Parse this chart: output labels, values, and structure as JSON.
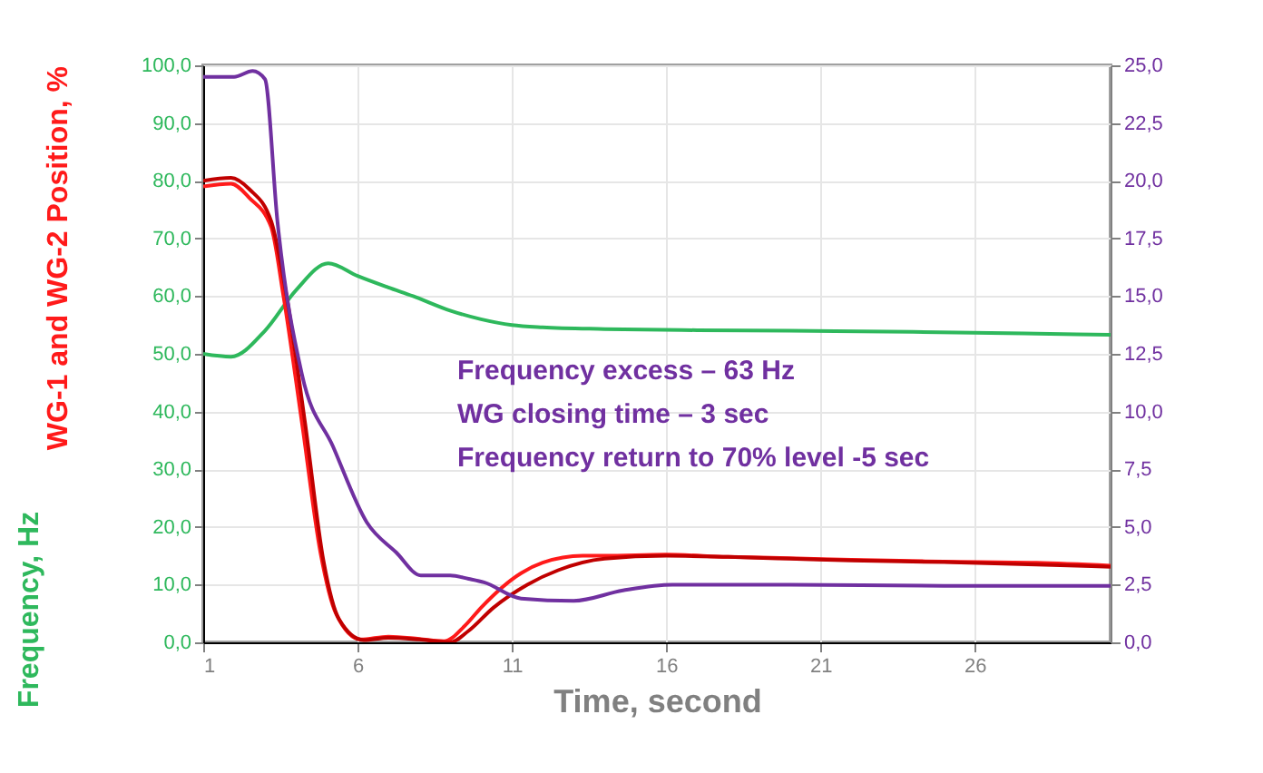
{
  "chart_data": {
    "type": "line",
    "xlabel": "Time, second",
    "ylabel": "WG-1 and WG-2 Position, %",
    "annotations": [
      "Frequency excess – 63 Hz",
      "WG closing time – 3 sec",
      "Frequency return to 70% level -5 sec",
      "Frequency, Hz"
    ],
    "series": [
      {
        "color": "#2eb85c",
        "x": [
          1,
          1.9,
          3,
          4,
          5.05,
          6,
          7,
          7.8,
          9,
          10,
          11,
          12,
          14,
          17,
          20,
          24,
          28,
          30.4
        ],
        "values": [
          50,
          49.5,
          54,
          61,
          65.7,
          63.5,
          61.5,
          60,
          57.5,
          56,
          55,
          54.6,
          54.3,
          54.1,
          54,
          53.8,
          53.5,
          53.3
        ]
      },
      {
        "color": "#ff1a1a",
        "x": [
          1,
          1.9,
          2.5,
          3.2,
          3.6,
          4.2,
          4.8,
          5.3,
          6.1,
          7,
          8,
          8.8,
          9.5,
          10,
          11.3,
          12,
          13.3,
          14,
          16,
          18,
          20,
          22,
          25,
          28,
          30.4
        ],
        "values": [
          79,
          79.5,
          77,
          72,
          60,
          38,
          15.5,
          5,
          0.5,
          1,
          0.6,
          0.2,
          3,
          6,
          12,
          13.8,
          15,
          15,
          15.2,
          14.8,
          14.6,
          14.3,
          14,
          13.8,
          13.3
        ]
      },
      {
        "color": "#c00000",
        "x": [
          1,
          1.9,
          2.5,
          3.2,
          3.7,
          4.3,
          4.9,
          5.4,
          6.2,
          7,
          8,
          9,
          9.6,
          10.4,
          11.5,
          12.5,
          14,
          16,
          18,
          20,
          22,
          25,
          28,
          30.4
        ],
        "values": [
          80,
          80.5,
          78.5,
          73,
          60,
          38,
          14,
          4,
          0.4,
          0.8,
          0.5,
          0,
          2,
          6,
          10,
          12.5,
          14.5,
          15,
          14.8,
          14.5,
          14.2,
          13.9,
          13.5,
          13.1
        ]
      },
      {
        "color": "#7030a0",
        "axis": "y2",
        "x": [
          1,
          2,
          2.6,
          3.0,
          3.4,
          4.2,
          5.2,
          6.3,
          7.25,
          8.05,
          9,
          9.6,
          10.1,
          11.3,
          13,
          14.6,
          16.2,
          20,
          25,
          30.4
        ],
        "values": [
          24.5,
          24.5,
          24.75,
          24.4,
          18.3,
          11.6,
          8.5,
          5.2,
          3.9,
          2.9,
          2.9,
          2.75,
          2.6,
          1.9,
          1.8,
          2.25,
          2.5,
          2.5,
          2.45,
          2.45
        ]
      }
    ],
    "xlim": [
      1,
      30.4
    ],
    "xticks": [
      1,
      6,
      11,
      16,
      21,
      26
    ],
    "ylim": [
      0,
      100
    ],
    "yticks": [
      {
        "value": 0,
        "label": "0,0"
      },
      {
        "value": 10,
        "label": "10,0"
      },
      {
        "value": 20,
        "label": "20,0"
      },
      {
        "value": 30,
        "label": "30,0"
      },
      {
        "value": 40,
        "label": "40,0"
      },
      {
        "value": 50,
        "label": "50,0"
      },
      {
        "value": 60,
        "label": "60,0"
      },
      {
        "value": 70,
        "label": "70,0"
      },
      {
        "value": 80,
        "label": "80,0"
      },
      {
        "value": 90,
        "label": "90,0"
      },
      {
        "value": 100,
        "label": "100,0"
      }
    ],
    "y2lim": [
      0,
      25
    ],
    "y2ticks": [
      {
        "value": 0,
        "label": "0,0"
      },
      {
        "value": 2.5,
        "label": "2,5"
      },
      {
        "value": 5,
        "label": "5,0"
      },
      {
        "value": 7.5,
        "label": "7,5"
      },
      {
        "value": 10,
        "label": "10,0"
      },
      {
        "value": 12.5,
        "label": "12,5"
      },
      {
        "value": 15,
        "label": "15,0"
      },
      {
        "value": 17.5,
        "label": "17,5"
      },
      {
        "value": 20,
        "label": "20,0"
      },
      {
        "value": 22.5,
        "label": "22,5"
      },
      {
        "value": 25,
        "label": "25,0"
      }
    ],
    "grid": true,
    "marker": "none",
    "line_style": "solid"
  }
}
